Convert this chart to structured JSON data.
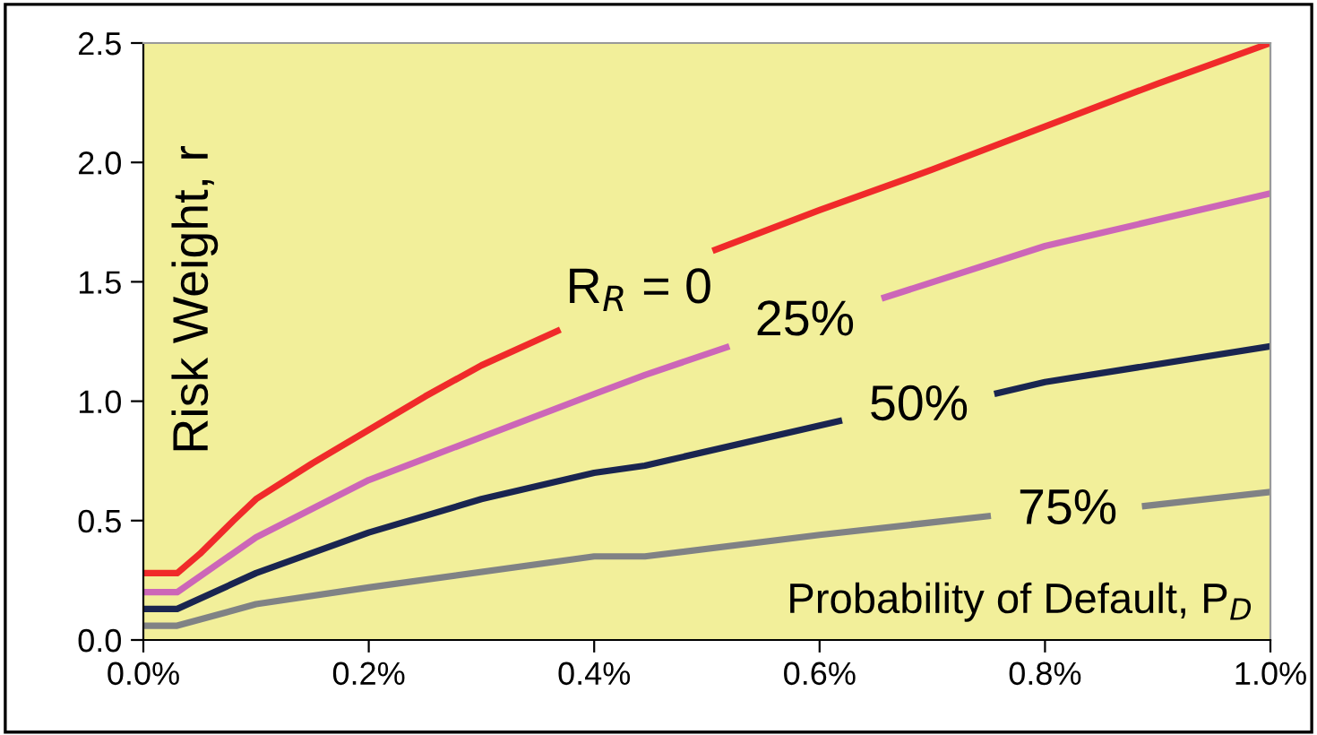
{
  "chart_data": {
    "type": "line",
    "xlabel": "Probability of Default, P$_{D}$",
    "ylabel": "Risk Weight, r",
    "xlim": [
      0,
      1.0
    ],
    "ylim": [
      0,
      2.5
    ],
    "xticks": [
      {
        "value": 0,
        "label": "0.0%"
      },
      {
        "value": 0.2,
        "label": "0.2%"
      },
      {
        "value": 0.4,
        "label": "0.4%"
      },
      {
        "value": 0.6,
        "label": "0.6%"
      },
      {
        "value": 0.8,
        "label": "0.8%"
      },
      {
        "value": 1.0,
        "label": "1.0%"
      }
    ],
    "yticks": [
      {
        "value": 0,
        "label": "0.0"
      },
      {
        "value": 0.5,
        "label": "0.5"
      },
      {
        "value": 1.0,
        "label": "1.0"
      },
      {
        "value": 1.5,
        "label": "1.5"
      },
      {
        "value": 2.0,
        "label": "2.0"
      },
      {
        "value": 2.5,
        "label": "2.5"
      }
    ],
    "grid": false,
    "legend": false,
    "marker": "none",
    "line_style": "solid",
    "series": [
      {
        "name": "R$_{R}$ = 0",
        "color": "#f02a2a",
        "x": [
          0,
          0.03,
          0.05,
          0.08,
          0.1,
          0.15,
          0.2,
          0.25,
          0.3,
          0.37,
          0.44,
          0.505,
          0.6,
          0.7,
          0.8,
          0.9,
          1.0
        ],
        "values": [
          0.28,
          0.28,
          0.36,
          0.5,
          0.59,
          0.74,
          0.88,
          1.02,
          1.15,
          1.3,
          null,
          1.63,
          1.8,
          1.97,
          2.15,
          2.33,
          2.5
        ]
      },
      {
        "name": "25%",
        "color": "#cc66b8",
        "x": [
          0,
          0.03,
          0.1,
          0.15,
          0.2,
          0.3,
          0.4,
          0.445,
          0.52,
          0.587,
          0.655,
          0.8,
          1.0
        ],
        "values": [
          0.2,
          0.2,
          0.43,
          0.55,
          0.67,
          0.85,
          1.03,
          1.11,
          1.23,
          null,
          1.43,
          1.65,
          1.87
        ]
      },
      {
        "name": "50%",
        "color": "#1a2550",
        "x": [
          0,
          0.03,
          0.1,
          0.2,
          0.3,
          0.4,
          0.445,
          0.62,
          0.688,
          0.755,
          0.8,
          1.0
        ],
        "values": [
          0.13,
          0.13,
          0.28,
          0.45,
          0.59,
          0.7,
          0.73,
          0.92,
          null,
          1.03,
          1.08,
          1.23
        ]
      },
      {
        "name": "75%",
        "color": "#808285",
        "x": [
          0,
          0.03,
          0.1,
          0.2,
          0.4,
          0.445,
          0.6,
          0.752,
          0.82,
          0.886,
          1.0
        ],
        "values": [
          0.06,
          0.06,
          0.15,
          0.22,
          0.35,
          0.35,
          0.44,
          0.52,
          null,
          0.56,
          0.62
        ]
      }
    ]
  }
}
